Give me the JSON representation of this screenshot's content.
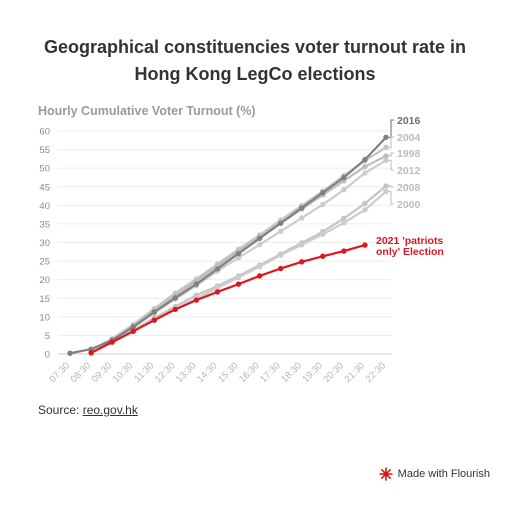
{
  "title_line1": "Geographical constituencies voter turnout rate in",
  "title_line2": "Hong Kong LegCo elections",
  "source_label": "Source:",
  "source_link": "reo.gov.hk",
  "branding": "Made with Flourish",
  "chart_data": {
    "type": "line",
    "ylabel": "Hourly Cumulative Voter Turnout (%)",
    "ylim": [
      0,
      60
    ],
    "yticks": [
      0,
      5,
      10,
      15,
      20,
      25,
      30,
      35,
      40,
      45,
      50,
      55,
      60
    ],
    "x": [
      "07:30",
      "08:30",
      "09:30",
      "10:30",
      "11:30",
      "12:30",
      "13:30",
      "14:30",
      "15:30",
      "16:30",
      "17:30",
      "18:30",
      "19:30",
      "20:30",
      "21:30",
      "22:30"
    ],
    "series": [
      {
        "name": "2016",
        "color": "#808080",
        "values": [
          0.2,
          1.3,
          3.7,
          7.3,
          11.3,
          15.1,
          18.8,
          22.9,
          27.0,
          31.1,
          35.2,
          39.3,
          43.4,
          47.5,
          52.3,
          58.3
        ]
      },
      {
        "name": "2004",
        "color": "#c5c5c5",
        "values": [
          null,
          1.1,
          4.1,
          7.9,
          12.2,
          16.4,
          20.2,
          24.2,
          28.2,
          32.0,
          36.0,
          39.9,
          43.8,
          48.0,
          52.0,
          55.6
        ]
      },
      {
        "name": "1998",
        "color": "#bdbdbd",
        "values": [
          null,
          1.1,
          3.8,
          7.5,
          11.6,
          15.7,
          19.6,
          23.6,
          27.6,
          31.4,
          35.2,
          39.0,
          42.8,
          46.6,
          50.4,
          53.3
        ]
      },
      {
        "name": "2012",
        "color": "#cccccc",
        "values": [
          null,
          1.0,
          3.6,
          7.1,
          11.0,
          14.8,
          18.4,
          22.3,
          25.9,
          29.4,
          33.0,
          36.6,
          40.2,
          44.2,
          48.7,
          52.1
        ]
      },
      {
        "name": "2008",
        "color": "#c5c5c5",
        "values": [
          null,
          0.9,
          3.2,
          6.4,
          9.7,
          12.8,
          15.8,
          18.3,
          21.0,
          23.9,
          26.9,
          29.9,
          32.9,
          36.5,
          40.5,
          45.2
        ]
      },
      {
        "name": "2000",
        "color": "#cccccc",
        "values": [
          null,
          0.8,
          3.1,
          6.2,
          9.2,
          12.1,
          14.9,
          17.8,
          20.6,
          23.5,
          26.6,
          29.4,
          32.2,
          35.3,
          38.8,
          43.7
        ]
      },
      {
        "name": "2021 'patriots only' Election",
        "color": "#e0161e",
        "values": [
          null,
          0.3,
          3.2,
          6.1,
          9.1,
          12.0,
          14.5,
          16.7,
          18.8,
          21.0,
          23.0,
          24.8,
          26.3,
          27.7,
          29.3,
          null
        ]
      }
    ]
  }
}
